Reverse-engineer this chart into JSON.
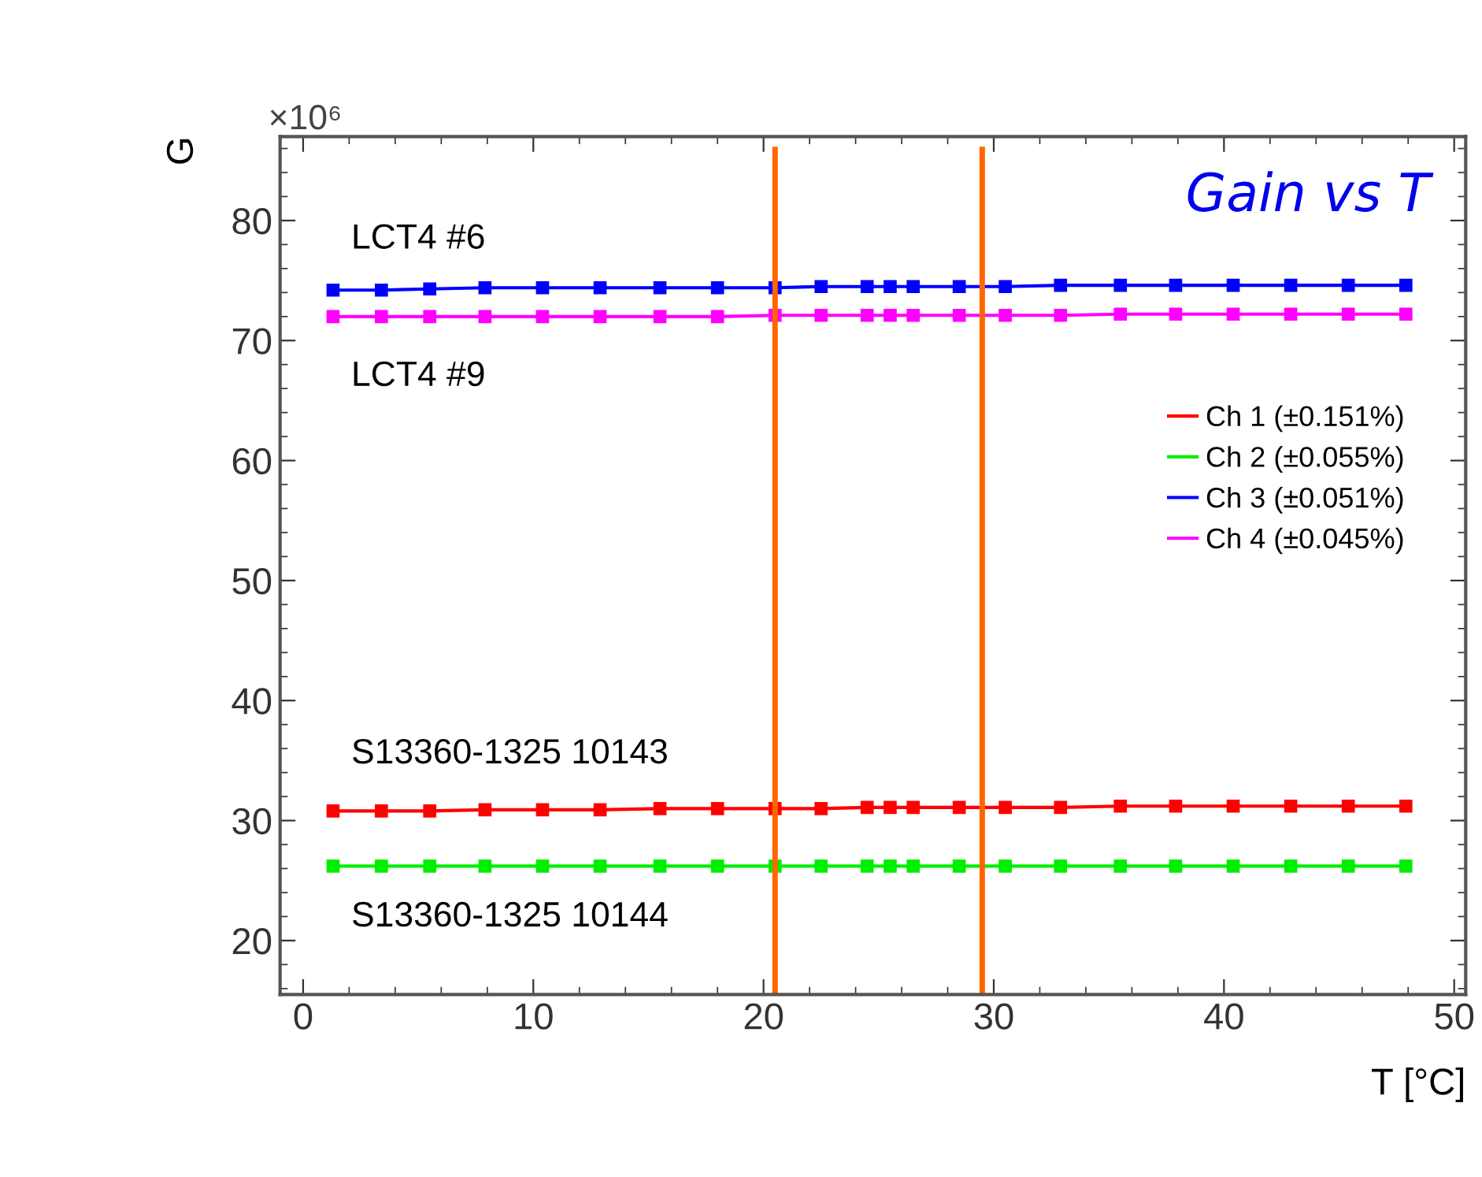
{
  "chart_data": {
    "type": "line",
    "title": "Gain vs T",
    "xlabel": "T [°C]",
    "ylabel": "G",
    "x": [
      1.3,
      3.4,
      5.5,
      7.9,
      10.4,
      12.9,
      15.5,
      18.0,
      20.5,
      22.5,
      24.5,
      25.5,
      26.5,
      28.5,
      30.5,
      32.9,
      35.5,
      37.9,
      40.4,
      42.9,
      45.4,
      47.9
    ],
    "series": [
      {
        "name": "Ch 1 (±0.151%)",
        "color": "#ff0000",
        "values": [
          30.8,
          30.8,
          30.8,
          30.9,
          30.9,
          30.9,
          31.0,
          31.0,
          31.0,
          31.0,
          31.1,
          31.1,
          31.1,
          31.1,
          31.1,
          31.1,
          31.2,
          31.2,
          31.2,
          31.2,
          31.2,
          31.2
        ]
      },
      {
        "name": "Ch 2 (±0.055%)",
        "color": "#00ee00",
        "values": [
          26.2,
          26.2,
          26.2,
          26.2,
          26.2,
          26.2,
          26.2,
          26.2,
          26.2,
          26.2,
          26.2,
          26.2,
          26.2,
          26.2,
          26.2,
          26.2,
          26.2,
          26.2,
          26.2,
          26.2,
          26.2,
          26.2
        ]
      },
      {
        "name": "Ch 3 (±0.051%)",
        "color": "#0000ff",
        "values": [
          74.2,
          74.2,
          74.3,
          74.4,
          74.4,
          74.4,
          74.4,
          74.4,
          74.4,
          74.5,
          74.5,
          74.5,
          74.5,
          74.5,
          74.5,
          74.6,
          74.6,
          74.6,
          74.6,
          74.6,
          74.6,
          74.6
        ]
      },
      {
        "name": "Ch 4 (±0.045%)",
        "color": "#ff00ff",
        "values": [
          72.0,
          72.0,
          72.0,
          72.0,
          72.0,
          72.0,
          72.0,
          72.0,
          72.1,
          72.1,
          72.1,
          72.1,
          72.1,
          72.1,
          72.1,
          72.1,
          72.2,
          72.2,
          72.2,
          72.2,
          72.2,
          72.2
        ]
      }
    ],
    "marker": "square",
    "line_style": "solid",
    "legend": "right",
    "grid": false,
    "xlim": [
      -1,
      50.5
    ],
    "xticks": [
      0,
      10,
      20,
      30,
      40,
      50
    ],
    "ylim": [
      15.5,
      87
    ],
    "yticks": [
      20,
      30,
      40,
      50,
      60,
      70,
      80
    ],
    "ref_lines": [
      {
        "axis": "x",
        "value": 20.5,
        "color": "#ff6600"
      },
      {
        "axis": "x",
        "value": 29.5,
        "color": "#ff6600"
      }
    ],
    "annotations": [
      "×10⁶",
      "LCT4 #6",
      "LCT4 #9",
      "S13360-1325 10143",
      "S13360-1325 10144"
    ]
  }
}
